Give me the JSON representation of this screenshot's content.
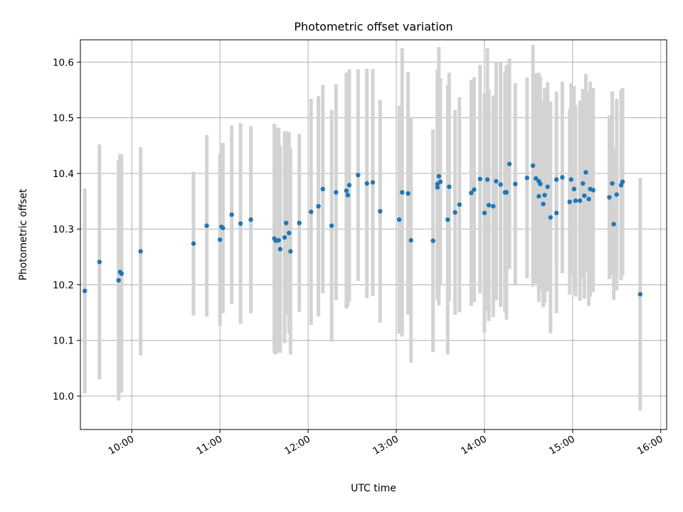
{
  "chart_data": {
    "type": "scatter",
    "title": "Photometric offset variation",
    "xlabel": "UTC time",
    "ylabel": "Photometric offset",
    "x_ticks": [
      "10:00",
      "11:00",
      "12:00",
      "13:00",
      "14:00",
      "15:00",
      "16:00"
    ],
    "y_ticks": [
      "10.0",
      "10.1",
      "10.2",
      "10.3",
      "10.4",
      "10.5",
      "10.6"
    ],
    "xlim": [
      "09:25",
      "16:04"
    ],
    "ylim": [
      9.94,
      10.64
    ],
    "grid": true,
    "colors": {
      "marker": "#1f77b4",
      "errorbar": "#d3d3d3"
    },
    "series": [
      {
        "x": [
          "09:28",
          "09:38",
          "09:51",
          "09:52",
          "09:53",
          "10:06",
          "10:42",
          "10:51",
          "11:00",
          "11:01",
          "11:02",
          "11:08",
          "11:14",
          "11:21",
          "11:37",
          "11:38",
          "11:40",
          "11:41",
          "11:44",
          "11:45",
          "11:47",
          "11:48",
          "11:54",
          "12:02",
          "12:07",
          "12:10",
          "12:16",
          "12:19",
          "12:26",
          "12:27",
          "12:28",
          "12:34",
          "12:40",
          "12:44",
          "12:49",
          "13:02",
          "13:04",
          "13:08",
          "13:10",
          "13:25",
          "13:28",
          "13:28",
          "13:29",
          "13:30",
          "13:35",
          "13:36",
          "13:40",
          "13:43",
          "13:51",
          "13:53",
          "13:57",
          "14:00",
          "14:02",
          "14:03",
          "14:06",
          "14:08",
          "14:11",
          "14:14",
          "14:15",
          "14:17",
          "14:21",
          "14:29",
          "14:33",
          "14:35",
          "14:37",
          "14:37",
          "14:38",
          "14:40",
          "14:41",
          "14:43",
          "14:45",
          "14:49",
          "14:49",
          "14:53",
          "14:58",
          "14:59",
          "15:01",
          "15:02",
          "15:05",
          "15:07",
          "15:08",
          "15:09",
          "15:11",
          "15:12",
          "15:14",
          "15:25",
          "15:27",
          "15:28",
          "15:30",
          "15:33",
          "15:34",
          "15:46"
        ],
        "y": [
          10.189,
          10.241,
          10.208,
          10.223,
          10.22,
          10.26,
          10.274,
          10.306,
          10.281,
          10.304,
          10.302,
          10.326,
          10.31,
          10.317,
          10.283,
          10.279,
          10.28,
          10.264,
          10.285,
          10.311,
          10.293,
          10.26,
          10.311,
          10.331,
          10.341,
          10.372,
          10.306,
          10.366,
          10.369,
          10.361,
          10.379,
          10.397,
          10.382,
          10.384,
          10.332,
          10.317,
          10.366,
          10.364,
          10.28,
          10.279,
          10.381,
          10.375,
          10.395,
          10.385,
          10.317,
          10.376,
          10.33,
          10.344,
          10.365,
          10.371,
          10.39,
          10.329,
          10.389,
          10.343,
          10.341,
          10.386,
          10.38,
          10.366,
          10.366,
          10.417,
          10.381,
          10.392,
          10.414,
          10.391,
          10.386,
          10.359,
          10.381,
          10.345,
          10.361,
          10.376,
          10.321,
          10.329,
          10.389,
          10.393,
          10.349,
          10.389,
          10.372,
          10.351,
          10.351,
          10.382,
          10.36,
          10.402,
          10.354,
          10.372,
          10.37,
          10.357,
          10.382,
          10.309,
          10.362,
          10.379,
          10.385,
          10.183
        ],
        "err": [
          0.184,
          0.211,
          0.216,
          0.212,
          0.214,
          0.187,
          0.129,
          0.163,
          0.155,
          0.151,
          0.153,
          0.16,
          0.18,
          0.168,
          0.206,
          0.204,
          0.202,
          0.186,
          0.19,
          0.165,
          0.181,
          0.185,
          0.16,
          0.203,
          0.198,
          0.187,
          0.208,
          0.194,
          0.212,
          0.2,
          0.208,
          0.19,
          0.206,
          0.204,
          0.2,
          0.205,
          0.259,
          0.218,
          0.22,
          0.2,
          0.206,
          0.203,
          0.232,
          0.186,
          0.242,
          0.205,
          0.184,
          0.193,
          0.203,
          0.202,
          0.205,
          0.215,
          0.236,
          0.208,
          0.199,
          0.214,
          0.22,
          0.216,
          0.229,
          0.189,
          0.181,
          0.18,
          0.217,
          0.189,
          0.195,
          0.19,
          0.192,
          0.185,
          0.193,
          0.188,
          0.208,
          0.18,
          0.158,
          0.172,
          0.167,
          0.173,
          0.185,
          0.172,
          0.18,
          0.17,
          0.185,
          0.177,
          0.192,
          0.193,
          0.183,
          0.147,
          0.165,
          0.136,
          0.172,
          0.171,
          0.168,
          0.209
        ]
      }
    ]
  }
}
